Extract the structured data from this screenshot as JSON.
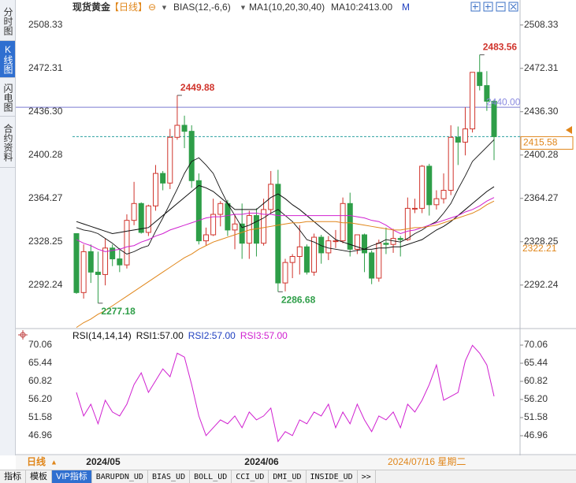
{
  "header": {
    "items": [
      "现货黄金",
      "【日线】",
      "⊖",
      "▼",
      "BIAS(12,-6,6)",
      "▼",
      "MA1(10,20,30,40)",
      "MA10:2413.00",
      "M"
    ]
  },
  "sidebar": {
    "tabs": [
      "分时图",
      "K线图",
      "闪电图",
      "合约资料"
    ],
    "selected": 1
  },
  "chart_data": [
    {
      "type": "candlestick",
      "categories": [
        null,
        null,
        "2024/05",
        null,
        null,
        null,
        null,
        null,
        null,
        null,
        null,
        null,
        null,
        null,
        null,
        null,
        null,
        null,
        null,
        null,
        null,
        null,
        null,
        null,
        "2024/06",
        null,
        null,
        null,
        null,
        null,
        null,
        null,
        null,
        null,
        null,
        null,
        null,
        null,
        null,
        null,
        null,
        null,
        null,
        null,
        null,
        null,
        null,
        null,
        null,
        null,
        null,
        null,
        null,
        null,
        null,
        null,
        null,
        null,
        null
      ],
      "open": [
        2335,
        2286,
        2320,
        2303,
        2301,
        2323,
        2314,
        2309,
        2346,
        2360,
        2336,
        2358,
        2385,
        2377,
        2415,
        2425,
        2420,
        2379,
        2329,
        2334,
        2351,
        2360,
        2338,
        2343,
        2327,
        2350,
        2327,
        2355,
        2376,
        2294,
        2311,
        2316,
        2324,
        2303,
        2332,
        2319,
        2329,
        2329,
        2360,
        2322,
        2334,
        2319,
        2298,
        2327,
        2326,
        2331,
        2330,
        2356,
        2356,
        2391,
        2359,
        2364,
        2371,
        2415,
        2411,
        2422,
        2469,
        2458,
        2445
      ],
      "high": [
        2335,
        2326,
        2326,
        2320,
        2331,
        2326,
        2323,
        2351,
        2378,
        2361,
        2359,
        2392,
        2387,
        2422,
        2449.88,
        2433,
        2425,
        2385,
        2340,
        2364,
        2362,
        2363,
        2351,
        2360,
        2354,
        2356,
        2364,
        2387,
        2388,
        2314,
        2318,
        2342,
        2326,
        2335,
        2334,
        2333,
        2338,
        2365,
        2369,
        2334,
        2335,
        2321,
        2330,
        2340,
        2339,
        2333,
        2365,
        2364,
        2392,
        2393,
        2371,
        2385,
        2425,
        2424,
        2440,
        2469,
        2483.56,
        2470,
        2446
      ],
      "low": [
        2285,
        2281,
        2294,
        2277.18,
        2292,
        2308,
        2303,
        2306,
        2342,
        2335,
        2333,
        2354,
        2371,
        2372,
        2413,
        2406,
        2373,
        2326,
        2325,
        2333,
        2341,
        2333,
        2322,
        2314,
        2314,
        2316,
        2325,
        2352,
        2286.68,
        2287,
        2298,
        2301,
        2301,
        2300,
        2310,
        2313,
        2323,
        2327,
        2316,
        2318,
        2303,
        2293,
        2295,
        2318,
        2319,
        2316,
        2329,
        2352,
        2352,
        2350,
        2355,
        2360,
        2367,
        2392,
        2400,
        2419,
        2454,
        2437,
        2396
      ],
      "close": [
        2286,
        2320,
        2303,
        2301,
        2323,
        2314,
        2309,
        2346,
        2360,
        2336,
        2358,
        2385,
        2377,
        2415,
        2425,
        2420,
        2379,
        2329,
        2334,
        2351,
        2360,
        2338,
        2343,
        2327,
        2350,
        2327,
        2355,
        2376,
        2294,
        2311,
        2316,
        2324,
        2303,
        2332,
        2319,
        2329,
        2329,
        2360,
        2322,
        2334,
        2319,
        2298,
        2327,
        2326,
        2331,
        2330,
        2356,
        2356,
        2391,
        2359,
        2364,
        2371,
        2415,
        2411,
        2422,
        2469,
        2458,
        2445,
        2415.58
      ],
      "up_color": "#d0342c",
      "down_color": "#2e9e48",
      "series": [
        {
          "color": "#111111",
          "values": [
            2340,
            2338,
            2337,
            2335,
            2331,
            2327,
            2322,
            2318,
            2320,
            2323,
            2325,
            2337,
            2348,
            2360,
            2372,
            2385,
            2395,
            2398,
            2392,
            2385,
            2372,
            2360,
            2350,
            2340,
            2342,
            2345,
            2348,
            2352,
            2355,
            2350,
            2345,
            2338,
            2330,
            2328,
            2325,
            2323,
            2322,
            2321,
            2320,
            2321,
            2322,
            2325,
            2327,
            2330,
            2329,
            2328,
            2331,
            2335,
            2338,
            2342,
            2345,
            2352,
            2360,
            2372,
            2383,
            2395,
            2401,
            2407,
            2413
          ]
        },
        {
          "color": "#111111",
          "values": [
            2345,
            2343,
            2341,
            2339,
            2337,
            2335,
            2336,
            2337,
            2338,
            2339,
            2340,
            2345,
            2350,
            2355,
            2360,
            2365,
            2370,
            2375,
            2373,
            2370,
            2365,
            2360,
            2355,
            2355,
            2355,
            2355,
            2360,
            2365,
            2368,
            2364,
            2359,
            2355,
            2350,
            2345,
            2340,
            2335,
            2330,
            2328,
            2326,
            2324,
            2322,
            2322,
            2323,
            2323,
            2324,
            2324,
            2326,
            2328,
            2330,
            2334,
            2338,
            2341,
            2345,
            2350,
            2355,
            2360,
            2365,
            2370,
            2374
          ]
        },
        {
          "color": "#d020d0",
          "values": [
            2330,
            2327,
            2325,
            2322,
            2320,
            2321,
            2322,
            2324,
            2325,
            2328,
            2330,
            2333,
            2335,
            2338,
            2340,
            2342,
            2344,
            2346,
            2348,
            2349,
            2349,
            2350,
            2351,
            2351,
            2352,
            2352,
            2351,
            2351,
            2350,
            2350,
            2350,
            2350,
            2350,
            2350,
            2350,
            2350,
            2350,
            2350,
            2350,
            2349,
            2348,
            2346,
            2345,
            2342,
            2338,
            2335,
            2337,
            2338,
            2340,
            2342,
            2344,
            2346,
            2348,
            2350,
            2353,
            2355,
            2358,
            2362,
            2365
          ]
        },
        {
          "color": "#e0861a",
          "values": [
            2257,
            2261,
            2264,
            2268,
            2271,
            2275,
            2279,
            2283,
            2287,
            2291,
            2295,
            2299,
            2303,
            2307,
            2311,
            2315,
            2318,
            2322,
            2325,
            2328,
            2330,
            2332,
            2334,
            2336,
            2338,
            2339,
            2340,
            2341,
            2342,
            2343,
            2344,
            2344,
            2345,
            2345,
            2345,
            2345,
            2345,
            2344,
            2344,
            2343,
            2342,
            2341,
            2340,
            2339,
            2338,
            2338,
            2339,
            2340,
            2340,
            2341,
            2342,
            2344,
            2346,
            2348,
            2350,
            2352,
            2355,
            2359,
            2362
          ]
        }
      ],
      "ylim": [
        2257.4,
        2513.4
      ],
      "yticks": [
        {
          "value": 2508.33,
          "label": "2508.33"
        },
        {
          "value": 2472.31,
          "label": "2472.31"
        },
        {
          "value": 2436.3,
          "label": "2436.30"
        },
        {
          "value": 2400.28,
          "label": "2400.28"
        },
        {
          "value": 2364.27,
          "label": "2364.27"
        },
        {
          "value": 2328.25,
          "label": "2328.25"
        },
        {
          "value": 2292.24,
          "label": "2292.24"
        }
      ],
      "price_line": {
        "value": 2440,
        "label": "2440.00",
        "color": "#7a7ad0"
      },
      "last_price": {
        "value": 2415.58,
        "color": "#e0861a"
      },
      "cursor_price": {
        "value": 2322.21,
        "color": "#e0861a"
      },
      "cursor_label": "2024/07/16 星期二"
    },
    {
      "type": "line",
      "title": [
        "RSI(14,14,14)",
        "RSI1:57.00",
        "RSI2:57.00",
        "RSI3:57.00"
      ],
      "title_colors": [
        "#111111",
        "#111111",
        "#2040c0",
        "#d020d0"
      ],
      "series": [
        {
          "color": "#d020d0",
          "values": [
            58,
            52,
            55,
            50,
            56,
            53,
            52,
            55,
            60,
            63,
            58,
            61,
            64,
            62,
            68,
            67,
            60,
            52,
            47,
            49,
            51,
            50,
            52,
            49,
            53,
            51,
            52,
            54,
            45.5,
            48,
            47,
            51,
            50,
            53,
            52,
            55,
            49,
            53,
            50,
            55,
            51,
            48,
            52,
            51,
            53,
            49,
            55,
            53,
            56,
            60,
            65,
            56,
            57,
            58,
            66,
            70,
            68,
            65,
            57
          ]
        }
      ],
      "ylim": [
        42.54,
        74.08
      ],
      "yticks": [
        70.06,
        65.44,
        60.82,
        {
          "value": 56.2,
          "label": "56.20"
        },
        51.58,
        46.96
      ]
    }
  ],
  "footer": {
    "period": "日线",
    "arrow": "▲",
    "tabs": [
      "指标",
      "模板",
      "VIP指标",
      "BARUPDN_UD",
      "BIAS_UD",
      "BOLL_UD",
      "CCI_UD",
      "DMI_UD",
      "INSIDE_UD",
      ">>"
    ],
    "selected": 2
  }
}
